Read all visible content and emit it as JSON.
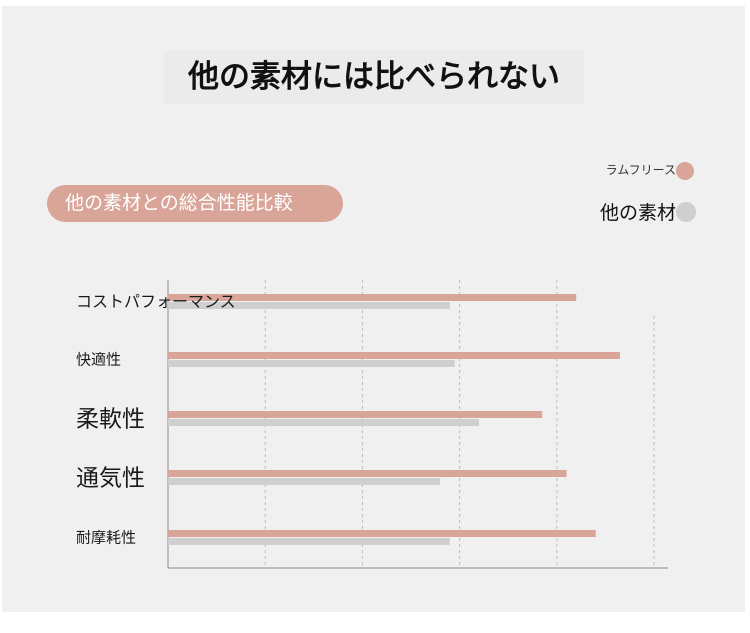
{
  "title": "他の素材には比べられない",
  "subtitle": "他の素材との総合性能比較",
  "legend": {
    "lamb_fleece": "ラムフリース",
    "other_material": "他の素材"
  },
  "colors": {
    "lamb_fleece": "#d9a598",
    "other_material": "#cfcfcf",
    "grid": "#bdbdbd",
    "axis": "#8a8a8a"
  },
  "chart_data": {
    "type": "bar",
    "orientation": "horizontal",
    "categories": [
      "コストパフォーマンス",
      "快適性",
      "柔軟性",
      "通気性",
      "耐摩耗性"
    ],
    "series": [
      {
        "name": "ラムフリース",
        "values": [
          4.2,
          4.65,
          3.85,
          4.1,
          4.4
        ]
      },
      {
        "name": "他の素材",
        "values": [
          2.9,
          2.95,
          3.2,
          2.8,
          2.9
        ]
      }
    ],
    "xlim": [
      0,
      5
    ],
    "grid": true,
    "legend_position": "top-right"
  }
}
